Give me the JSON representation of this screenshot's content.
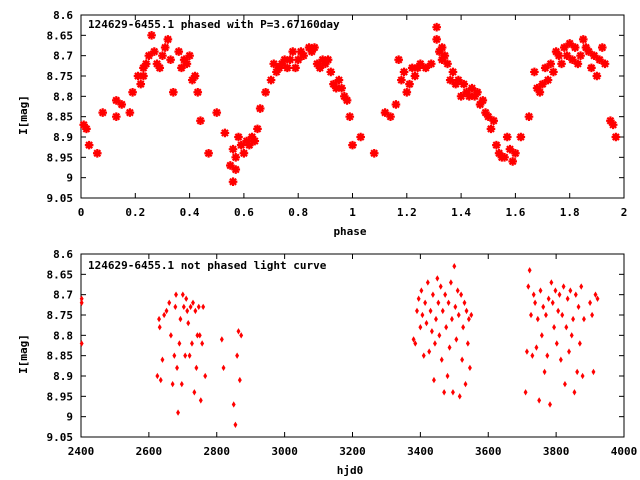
{
  "chart_data": [
    {
      "type": "scatter",
      "title": "124629-6455.1 phased with P=3.67160day",
      "xlabel": "phase",
      "ylabel": "I[mag]",
      "xlim": [
        0,
        2
      ],
      "ylim": [
        9.05,
        8.6
      ],
      "y_inverted": true,
      "xticks": [
        "0",
        "0.2",
        "0.4",
        "0.6",
        "0.8",
        "1",
        "1.2",
        "1.4",
        "1.6",
        "1.8",
        "2"
      ],
      "yticks": [
        "8.6",
        "8.65",
        "8.7",
        "8.75",
        "8.8",
        "8.85",
        "8.9",
        "8.95",
        "9",
        "9.05"
      ],
      "marker_color": "#ff0000",
      "grid": false,
      "points": [
        [
          0.01,
          8.87
        ],
        [
          0.02,
          8.88
        ],
        [
          0.03,
          8.92
        ],
        [
          0.06,
          8.94
        ],
        [
          0.08,
          8.84
        ],
        [
          0.13,
          8.85
        ],
        [
          0.13,
          8.81
        ],
        [
          0.15,
          8.82
        ],
        [
          0.18,
          8.84
        ],
        [
          0.19,
          8.79
        ],
        [
          0.21,
          8.75
        ],
        [
          0.22,
          8.77
        ],
        [
          0.23,
          8.73
        ],
        [
          0.23,
          8.75
        ],
        [
          0.24,
          8.72
        ],
        [
          0.25,
          8.7
        ],
        [
          0.26,
          8.65
        ],
        [
          0.27,
          8.69
        ],
        [
          0.28,
          8.72
        ],
        [
          0.29,
          8.73
        ],
        [
          0.3,
          8.7
        ],
        [
          0.31,
          8.68
        ],
        [
          0.32,
          8.66
        ],
        [
          0.33,
          8.71
        ],
        [
          0.34,
          8.79
        ],
        [
          0.36,
          8.69
        ],
        [
          0.37,
          8.73
        ],
        [
          0.38,
          8.71
        ],
        [
          0.39,
          8.72
        ],
        [
          0.4,
          8.7
        ],
        [
          0.41,
          8.76
        ],
        [
          0.42,
          8.75
        ],
        [
          0.43,
          8.79
        ],
        [
          0.44,
          8.86
        ],
        [
          0.47,
          8.94
        ],
        [
          0.5,
          8.84
        ],
        [
          0.53,
          8.89
        ],
        [
          0.55,
          8.97
        ],
        [
          0.56,
          8.93
        ],
        [
          0.57,
          8.95
        ],
        [
          0.56,
          9.01
        ],
        [
          0.57,
          8.98
        ],
        [
          0.58,
          8.9
        ],
        [
          0.59,
          8.92
        ],
        [
          0.6,
          8.94
        ],
        [
          0.61,
          8.91
        ],
        [
          0.62,
          8.92
        ],
        [
          0.63,
          8.9
        ],
        [
          0.64,
          8.91
        ],
        [
          0.65,
          8.88
        ],
        [
          0.66,
          8.83
        ],
        [
          0.68,
          8.79
        ],
        [
          0.7,
          8.76
        ],
        [
          0.71,
          8.72
        ],
        [
          0.72,
          8.74
        ],
        [
          0.73,
          8.73
        ],
        [
          0.74,
          8.72
        ],
        [
          0.75,
          8.71
        ],
        [
          0.76,
          8.73
        ],
        [
          0.77,
          8.71
        ],
        [
          0.78,
          8.69
        ],
        [
          0.79,
          8.73
        ],
        [
          0.8,
          8.71
        ],
        [
          0.81,
          8.69
        ],
        [
          0.82,
          8.7
        ],
        [
          0.84,
          8.68
        ],
        [
          0.85,
          8.69
        ],
        [
          0.86,
          8.68
        ],
        [
          0.87,
          8.72
        ],
        [
          0.88,
          8.73
        ],
        [
          0.89,
          8.71
        ],
        [
          0.9,
          8.72
        ],
        [
          0.91,
          8.71
        ],
        [
          0.92,
          8.74
        ],
        [
          0.93,
          8.77
        ],
        [
          0.94,
          8.78
        ],
        [
          0.95,
          8.76
        ],
        [
          0.96,
          8.78
        ],
        [
          0.97,
          8.8
        ],
        [
          0.98,
          8.81
        ],
        [
          0.99,
          8.85
        ],
        [
          1.0,
          8.92
        ],
        [
          1.03,
          8.9
        ],
        [
          1.08,
          8.94
        ],
        [
          1.12,
          8.84
        ],
        [
          1.14,
          8.85
        ],
        [
          1.16,
          8.82
        ],
        [
          1.17,
          8.71
        ],
        [
          1.18,
          8.76
        ],
        [
          1.19,
          8.74
        ],
        [
          1.2,
          8.79
        ],
        [
          1.21,
          8.77
        ],
        [
          1.22,
          8.73
        ],
        [
          1.23,
          8.75
        ],
        [
          1.24,
          8.73
        ],
        [
          1.25,
          8.72
        ],
        [
          1.27,
          8.73
        ],
        [
          1.29,
          8.72
        ],
        [
          1.31,
          8.63
        ],
        [
          1.31,
          8.66
        ],
        [
          1.32,
          8.69
        ],
        [
          1.33,
          8.68
        ],
        [
          1.33,
          8.71
        ],
        [
          1.34,
          8.7
        ],
        [
          1.35,
          8.72
        ],
        [
          1.36,
          8.76
        ],
        [
          1.37,
          8.74
        ],
        [
          1.38,
          8.77
        ],
        [
          1.39,
          8.76
        ],
        [
          1.4,
          8.8
        ],
        [
          1.41,
          8.77
        ],
        [
          1.42,
          8.79
        ],
        [
          1.43,
          8.8
        ],
        [
          1.44,
          8.78
        ],
        [
          1.45,
          8.8
        ],
        [
          1.46,
          8.79
        ],
        [
          1.47,
          8.82
        ],
        [
          1.48,
          8.81
        ],
        [
          1.49,
          8.84
        ],
        [
          1.5,
          8.85
        ],
        [
          1.51,
          8.88
        ],
        [
          1.52,
          8.86
        ],
        [
          1.53,
          8.92
        ],
        [
          1.54,
          8.94
        ],
        [
          1.55,
          8.95
        ],
        [
          1.56,
          8.95
        ],
        [
          1.57,
          8.9
        ],
        [
          1.58,
          8.93
        ],
        [
          1.59,
          8.96
        ],
        [
          1.6,
          8.94
        ],
        [
          1.62,
          8.9
        ],
        [
          1.65,
          8.85
        ],
        [
          1.67,
          8.74
        ],
        [
          1.68,
          8.78
        ],
        [
          1.69,
          8.79
        ],
        [
          1.7,
          8.77
        ],
        [
          1.71,
          8.73
        ],
        [
          1.72,
          8.76
        ],
        [
          1.73,
          8.72
        ],
        [
          1.74,
          8.74
        ],
        [
          1.75,
          8.69
        ],
        [
          1.76,
          8.7
        ],
        [
          1.77,
          8.72
        ],
        [
          1.78,
          8.68
        ],
        [
          1.79,
          8.7
        ],
        [
          1.8,
          8.67
        ],
        [
          1.81,
          8.71
        ],
        [
          1.82,
          8.68
        ],
        [
          1.83,
          8.72
        ],
        [
          1.84,
          8.7
        ],
        [
          1.85,
          8.66
        ],
        [
          1.86,
          8.68
        ],
        [
          1.87,
          8.69
        ],
        [
          1.88,
          8.73
        ],
        [
          1.89,
          8.7
        ],
        [
          1.9,
          8.75
        ],
        [
          1.91,
          8.71
        ],
        [
          1.92,
          8.68
        ],
        [
          1.93,
          8.72
        ],
        [
          1.95,
          8.86
        ],
        [
          1.96,
          8.87
        ],
        [
          1.97,
          8.9
        ]
      ]
    },
    {
      "type": "scatter",
      "title": "124629-6455.1 not phased light curve",
      "xlabel": "hjd0",
      "ylabel": "I[mag]",
      "xlim": [
        2400,
        4000
      ],
      "ylim": [
        9.05,
        8.6
      ],
      "y_inverted": true,
      "xticks": [
        "2400",
        "2600",
        "2800",
        "3000",
        "3200",
        "3400",
        "3600",
        "3800",
        "4000"
      ],
      "yticks": [
        "8.6",
        "8.65",
        "8.7",
        "8.75",
        "8.8",
        "8.85",
        "8.9",
        "8.95",
        "9",
        "9.05"
      ],
      "marker_color": "#ff0000",
      "grid": false,
      "points": [
        [
          2402,
          8.71
        ],
        [
          2402,
          8.72
        ],
        [
          2402,
          8.82
        ],
        [
          2625,
          8.9
        ],
        [
          2630,
          8.76
        ],
        [
          2632,
          8.78
        ],
        [
          2635,
          8.91
        ],
        [
          2640,
          8.86
        ],
        [
          2645,
          8.75
        ],
        [
          2652,
          8.74
        ],
        [
          2660,
          8.72
        ],
        [
          2665,
          8.8
        ],
        [
          2670,
          8.92
        ],
        [
          2675,
          8.85
        ],
        [
          2678,
          8.73
        ],
        [
          2680,
          8.7
        ],
        [
          2683,
          8.88
        ],
        [
          2686,
          8.99
        ],
        [
          2690,
          8.82
        ],
        [
          2693,
          8.76
        ],
        [
          2697,
          8.92
        ],
        [
          2700,
          8.7
        ],
        [
          2703,
          8.73
        ],
        [
          2707,
          8.85
        ],
        [
          2710,
          8.71
        ],
        [
          2713,
          8.74
        ],
        [
          2716,
          8.77
        ],
        [
          2720,
          8.85
        ],
        [
          2723,
          8.73
        ],
        [
          2727,
          8.82
        ],
        [
          2730,
          8.72
        ],
        [
          2734,
          8.94
        ],
        [
          2737,
          8.74
        ],
        [
          2740,
          8.88
        ],
        [
          2743,
          8.8
        ],
        [
          2747,
          8.73
        ],
        [
          2750,
          8.8
        ],
        [
          2753,
          8.96
        ],
        [
          2757,
          8.82
        ],
        [
          2760,
          8.73
        ],
        [
          2766,
          8.9
        ],
        [
          2815,
          8.81
        ],
        [
          2820,
          8.88
        ],
        [
          2850,
          8.97
        ],
        [
          2855,
          9.02
        ],
        [
          2860,
          8.85
        ],
        [
          2864,
          8.79
        ],
        [
          2868,
          8.91
        ],
        [
          2872,
          8.8
        ],
        [
          3380,
          8.81
        ],
        [
          3385,
          8.82
        ],
        [
          3390,
          8.74
        ],
        [
          3395,
          8.71
        ],
        [
          3400,
          8.78
        ],
        [
          3403,
          8.69
        ],
        [
          3406,
          8.75
        ],
        [
          3410,
          8.85
        ],
        [
          3414,
          8.72
        ],
        [
          3418,
          8.77
        ],
        [
          3422,
          8.67
        ],
        [
          3426,
          8.84
        ],
        [
          3430,
          8.74
        ],
        [
          3434,
          8.79
        ],
        [
          3437,
          8.7
        ],
        [
          3440,
          8.91
        ],
        [
          3443,
          8.82
        ],
        [
          3446,
          8.76
        ],
        [
          3450,
          8.66
        ],
        [
          3453,
          8.72
        ],
        [
          3456,
          8.8
        ],
        [
          3460,
          8.68
        ],
        [
          3463,
          8.86
        ],
        [
          3466,
          8.74
        ],
        [
          3470,
          8.94
        ],
        [
          3473,
          8.7
        ],
        [
          3476,
          8.78
        ],
        [
          3480,
          8.9
        ],
        [
          3483,
          8.72
        ],
        [
          3486,
          8.83
        ],
        [
          3490,
          8.67
        ],
        [
          3493,
          8.76
        ],
        [
          3496,
          8.94
        ],
        [
          3500,
          8.63
        ],
        [
          3503,
          8.73
        ],
        [
          3506,
          8.81
        ],
        [
          3510,
          8.69
        ],
        [
          3513,
          8.75
        ],
        [
          3516,
          8.95
        ],
        [
          3520,
          8.7
        ],
        [
          3523,
          8.86
        ],
        [
          3526,
          8.78
        ],
        [
          3530,
          8.72
        ],
        [
          3533,
          8.92
        ],
        [
          3536,
          8.74
        ],
        [
          3540,
          8.82
        ],
        [
          3543,
          8.76
        ],
        [
          3546,
          8.88
        ],
        [
          3550,
          8.75
        ],
        [
          3710,
          8.94
        ],
        [
          3714,
          8.84
        ],
        [
          3718,
          8.68
        ],
        [
          3722,
          8.64
        ],
        [
          3726,
          8.75
        ],
        [
          3730,
          8.85
        ],
        [
          3734,
          8.7
        ],
        [
          3738,
          8.72
        ],
        [
          3742,
          8.83
        ],
        [
          3746,
          8.76
        ],
        [
          3750,
          8.96
        ],
        [
          3754,
          8.69
        ],
        [
          3758,
          8.8
        ],
        [
          3762,
          8.73
        ],
        [
          3766,
          8.89
        ],
        [
          3770,
          8.75
        ],
        [
          3774,
          8.85
        ],
        [
          3778,
          8.71
        ],
        [
          3782,
          8.97
        ],
        [
          3786,
          8.67
        ],
        [
          3790,
          8.72
        ],
        [
          3794,
          8.78
        ],
        [
          3798,
          8.69
        ],
        [
          3802,
          8.82
        ],
        [
          3806,
          8.74
        ],
        [
          3810,
          8.7
        ],
        [
          3814,
          8.86
        ],
        [
          3818,
          8.75
        ],
        [
          3822,
          8.68
        ],
        [
          3826,
          8.92
        ],
        [
          3830,
          8.78
        ],
        [
          3834,
          8.71
        ],
        [
          3838,
          8.84
        ],
        [
          3842,
          8.69
        ],
        [
          3846,
          8.8
        ],
        [
          3850,
          8.76
        ],
        [
          3854,
          8.94
        ],
        [
          3858,
          8.7
        ],
        [
          3862,
          8.89
        ],
        [
          3866,
          8.73
        ],
        [
          3870,
          8.82
        ],
        [
          3874,
          8.68
        ],
        [
          3878,
          8.9
        ],
        [
          3882,
          8.76
        ],
        [
          3900,
          8.72
        ],
        [
          3906,
          8.75
        ],
        [
          3910,
          8.89
        ],
        [
          3916,
          8.7
        ],
        [
          3922,
          8.71
        ]
      ]
    }
  ]
}
